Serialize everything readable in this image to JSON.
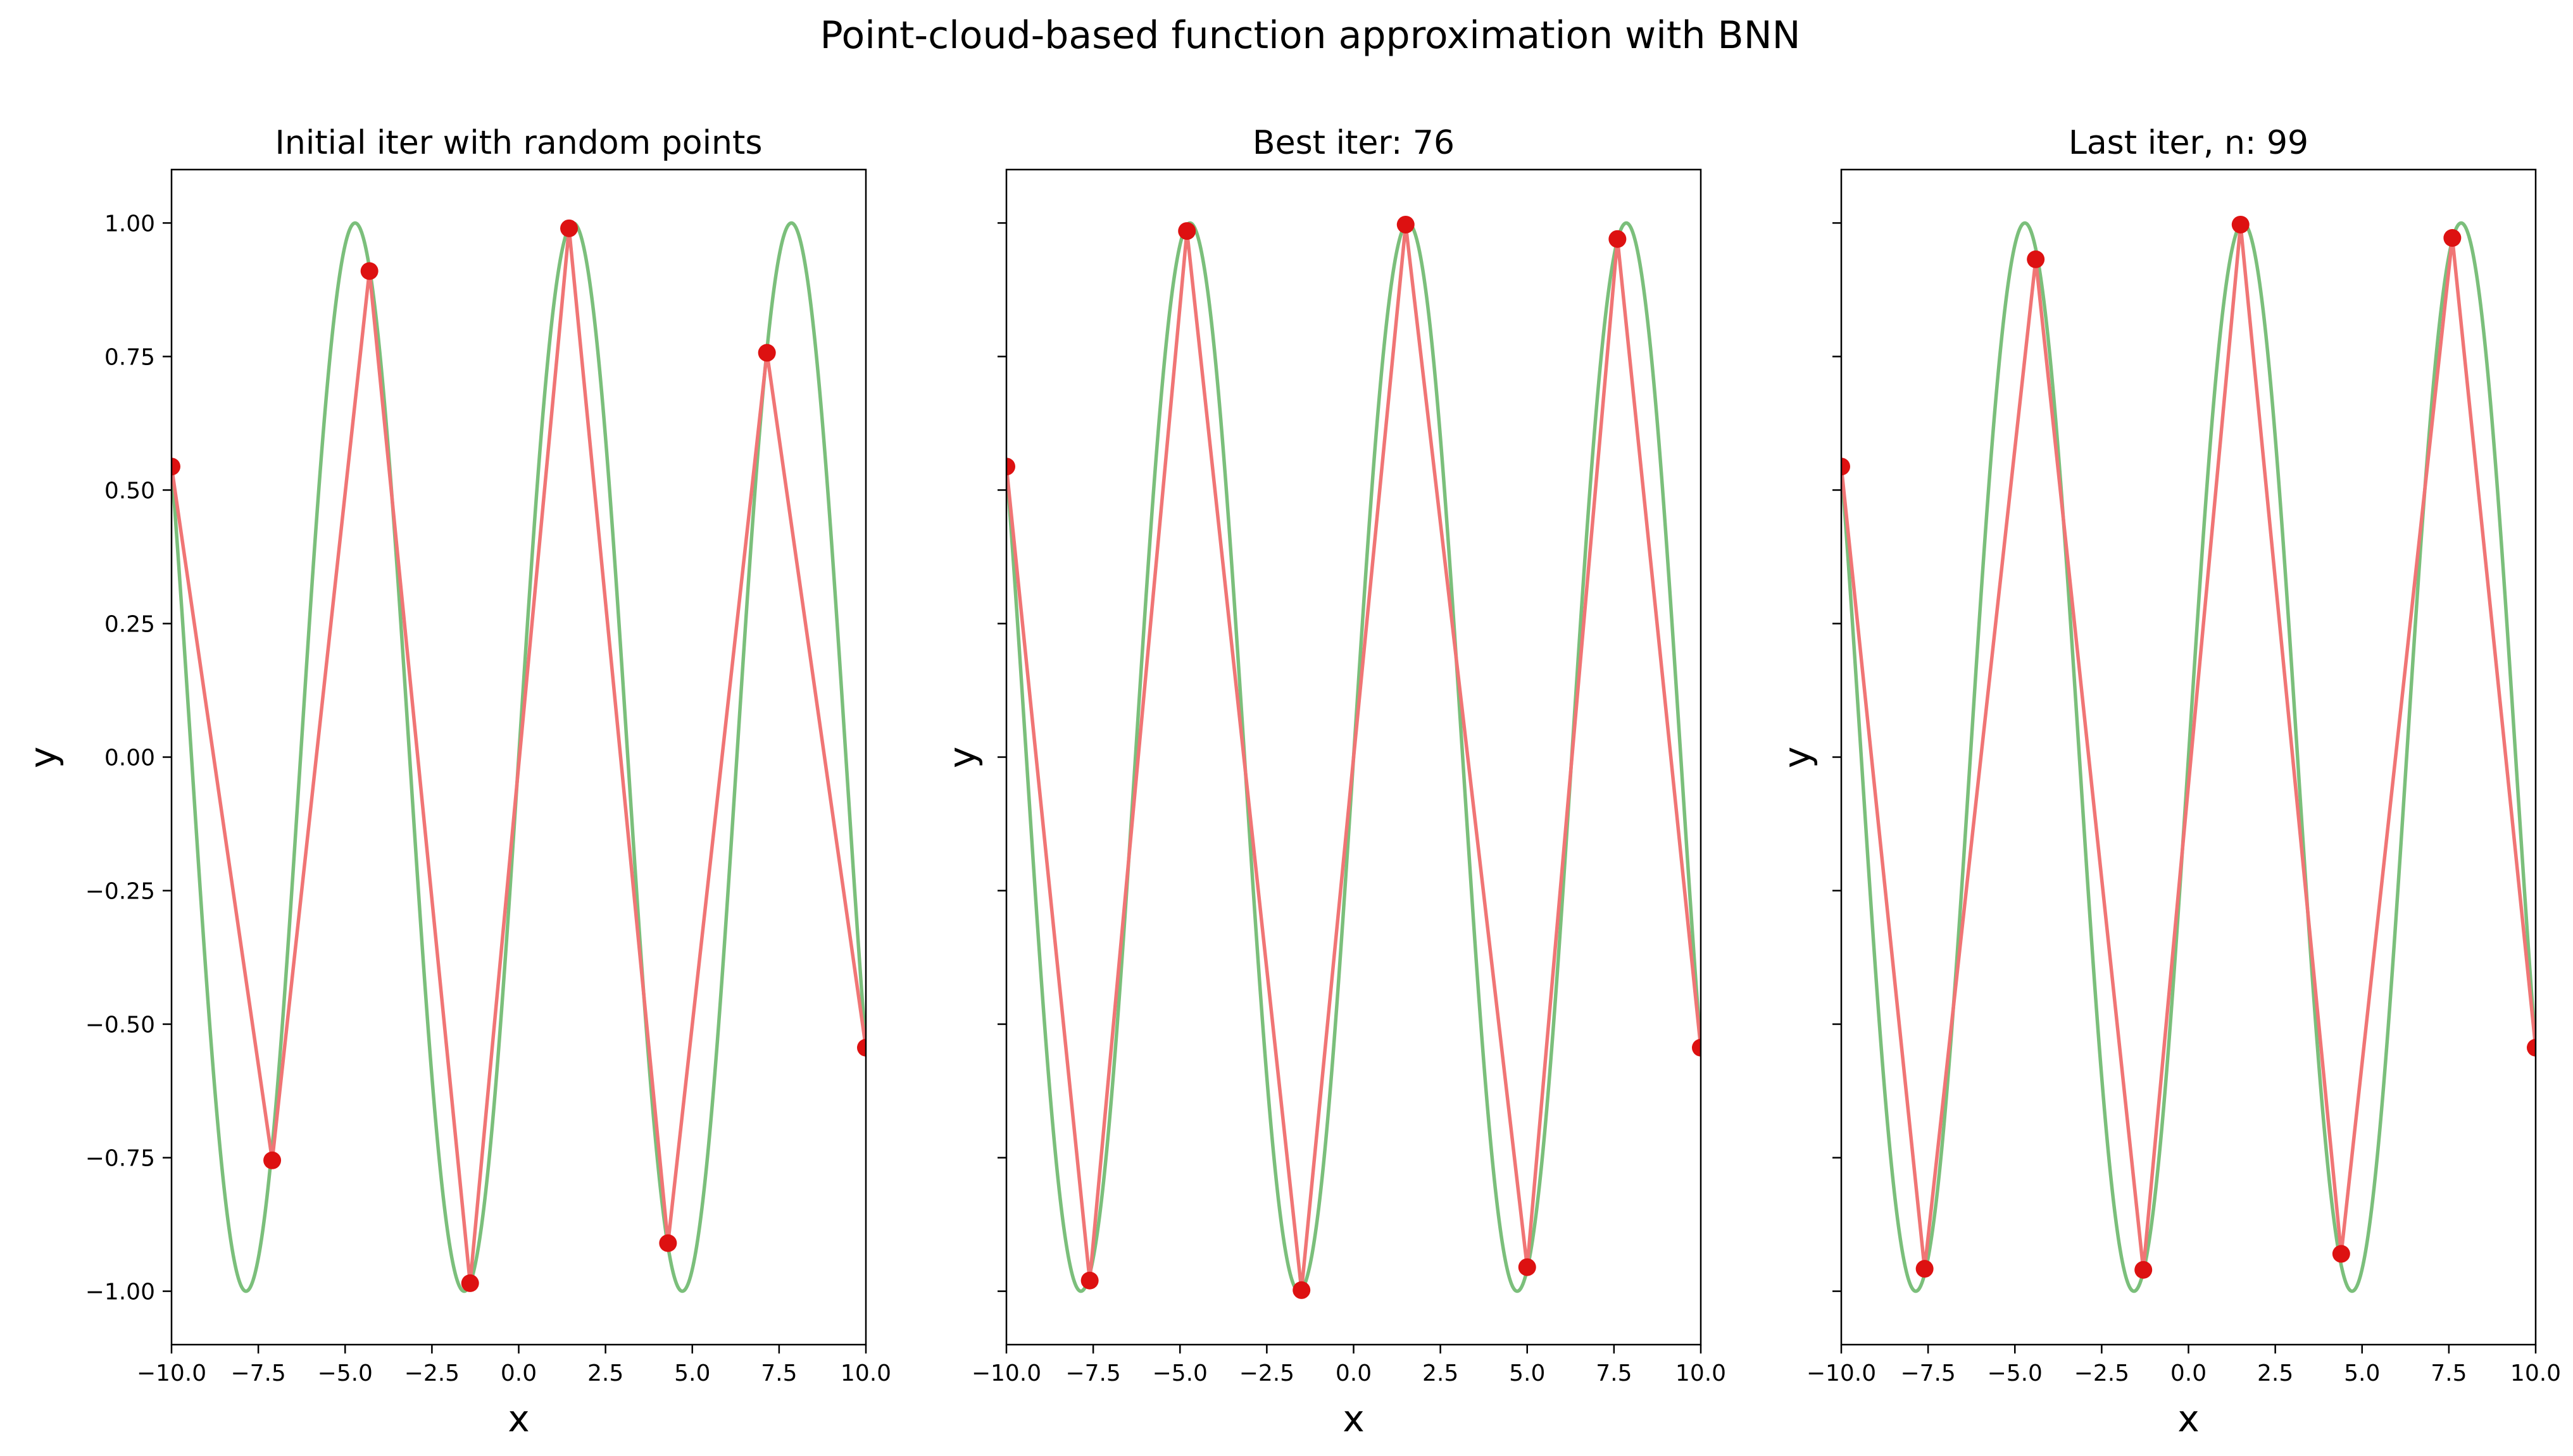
{
  "suptitle": "Point-cloud-based function approximation with BNN",
  "chart_data": [
    {
      "type": "line",
      "title": "Initial iter with random points",
      "xlabel": "x",
      "ylabel": "y",
      "xlim": [
        -10,
        10
      ],
      "ylim": [
        -1.1,
        1.1
      ],
      "xticks": [
        "−10.0",
        "−7.5",
        "−5.0",
        "−2.5",
        "0.0",
        "2.5",
        "5.0",
        "7.5",
        "10.0"
      ],
      "yticks": [
        "−1.00",
        "−0.75",
        "−0.50",
        "−0.25",
        "0.00",
        "0.25",
        "0.50",
        "0.75",
        "1.00"
      ],
      "show_ytick_labels": true,
      "grid": false,
      "series": [
        {
          "role": "true-function",
          "function": "sin(x)",
          "color": "#7bbf7b"
        },
        {
          "role": "approximation",
          "color": "#f07575",
          "x": [
            -10.0,
            -7.1,
            -4.3,
            -1.4,
            1.45,
            4.3,
            7.15,
            10.0
          ],
          "y": [
            0.544,
            -0.755,
            0.91,
            -0.985,
            0.99,
            -0.91,
            0.757,
            -0.544
          ]
        },
        {
          "role": "points",
          "color": "#dd1111",
          "x": [
            -10.0,
            -7.1,
            -4.3,
            -1.4,
            1.45,
            4.3,
            7.15,
            10.0
          ],
          "y": [
            0.544,
            -0.755,
            0.91,
            -0.985,
            0.99,
            -0.91,
            0.757,
            -0.544
          ]
        }
      ]
    },
    {
      "type": "line",
      "title": "Best iter: 76",
      "xlabel": "x",
      "ylabel": "y",
      "xlim": [
        -10,
        10
      ],
      "ylim": [
        -1.1,
        1.1
      ],
      "xticks": [
        "−10.0",
        "−7.5",
        "−5.0",
        "−2.5",
        "0.0",
        "2.5",
        "5.0",
        "7.5",
        "10.0"
      ],
      "yticks": [
        "−1.00",
        "−0.75",
        "−0.50",
        "−0.25",
        "0.00",
        "0.25",
        "0.50",
        "0.75",
        "1.00"
      ],
      "show_ytick_labels": false,
      "grid": false,
      "series": [
        {
          "role": "true-function",
          "function": "sin(x)",
          "color": "#7bbf7b"
        },
        {
          "role": "approximation",
          "color": "#f07575",
          "x": [
            -10.0,
            -7.6,
            -4.8,
            -1.5,
            1.5,
            5.0,
            7.6,
            10.0
          ],
          "y": [
            0.544,
            -0.98,
            0.985,
            -0.998,
            0.997,
            -0.955,
            0.97,
            -0.544
          ]
        },
        {
          "role": "points",
          "color": "#dd1111",
          "x": [
            -10.0,
            -7.6,
            -4.8,
            -1.5,
            1.5,
            5.0,
            7.6,
            10.0
          ],
          "y": [
            0.544,
            -0.98,
            0.985,
            -0.998,
            0.997,
            -0.955,
            0.97,
            -0.544
          ]
        }
      ]
    },
    {
      "type": "line",
      "title": "Last iter, n: 99",
      "xlabel": "x",
      "ylabel": "y",
      "xlim": [
        -10,
        10
      ],
      "ylim": [
        -1.1,
        1.1
      ],
      "xticks": [
        "−10.0",
        "−7.5",
        "−5.0",
        "−2.5",
        "0.0",
        "2.5",
        "5.0",
        "7.5",
        "10.0"
      ],
      "yticks": [
        "−1.00",
        "−0.75",
        "−0.50",
        "−0.25",
        "0.00",
        "0.25",
        "0.50",
        "0.75",
        "1.00"
      ],
      "show_ytick_labels": false,
      "grid": false,
      "series": [
        {
          "role": "true-function",
          "function": "sin(x)",
          "color": "#7bbf7b"
        },
        {
          "role": "approximation",
          "color": "#f07575",
          "x": [
            -10.0,
            -7.6,
            -4.4,
            -1.3,
            1.5,
            4.4,
            7.6,
            10.0
          ],
          "y": [
            0.544,
            -0.958,
            0.932,
            -0.96,
            0.997,
            -0.93,
            0.972,
            -0.544
          ]
        },
        {
          "role": "points",
          "color": "#dd1111",
          "x": [
            -10.0,
            -7.6,
            -4.4,
            -1.3,
            1.5,
            4.4,
            7.6,
            10.0
          ],
          "y": [
            0.544,
            -0.958,
            0.932,
            -0.96,
            0.997,
            -0.93,
            0.972,
            -0.544
          ]
        }
      ]
    }
  ]
}
